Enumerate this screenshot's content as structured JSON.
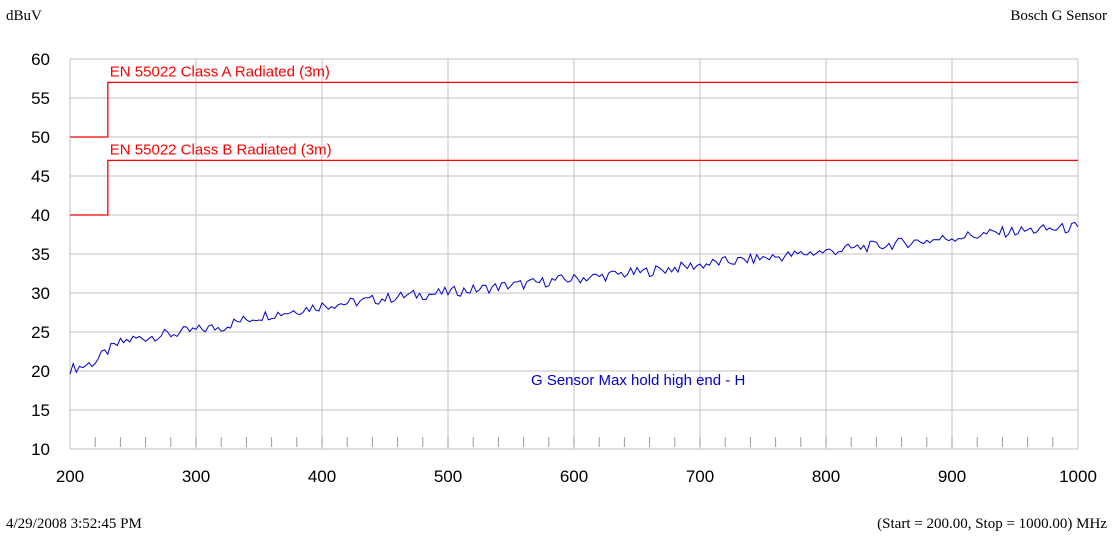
{
  "header": {
    "y_unit_label": "dBuV",
    "device_title": "Bosch G Sensor"
  },
  "footer": {
    "timestamp": "4/29/2008 3:52:45 PM",
    "range_info": "(Start = 200.00, Stop = 1000.00) MHz"
  },
  "colors": {
    "limit": "#ff0000",
    "trace": "#0000cc",
    "grid": "#c0c0c0",
    "axis_text": "#000000"
  },
  "chart_data": {
    "type": "line",
    "title": "Bosch G Sensor",
    "xlabel": "",
    "ylabel": "dBuV",
    "xlim": [
      200,
      1000
    ],
    "ylim": [
      10,
      60
    ],
    "x_ticks": [
      "200",
      "300",
      "400",
      "500",
      "600",
      "700",
      "800",
      "900",
      "1000"
    ],
    "y_ticks": [
      "10",
      "15",
      "20",
      "25",
      "30",
      "35",
      "40",
      "45",
      "50",
      "55",
      "60"
    ],
    "grid": true,
    "limit_lines": [
      {
        "name": "EN 55022 Class A Radiated (3m)",
        "x": [
          200,
          230,
          230,
          1000
        ],
        "y": [
          50,
          50,
          57,
          57
        ]
      },
      {
        "name": "EN 55022 Class B Radiated (3m)",
        "x": [
          200,
          230,
          230,
          1000
        ],
        "y": [
          40,
          40,
          47,
          47
        ]
      }
    ],
    "series": [
      {
        "name": "G Sensor Max hold high end - H",
        "x": [
          200,
          210,
          220,
          230,
          240,
          250,
          260,
          270,
          280,
          290,
          300,
          310,
          320,
          330,
          340,
          350,
          360,
          370,
          380,
          390,
          400,
          410,
          420,
          430,
          440,
          450,
          460,
          470,
          480,
          490,
          500,
          510,
          520,
          530,
          540,
          550,
          560,
          570,
          580,
          590,
          600,
          610,
          620,
          630,
          640,
          650,
          660,
          670,
          680,
          690,
          700,
          710,
          720,
          730,
          740,
          750,
          760,
          770,
          780,
          790,
          800,
          810,
          820,
          830,
          840,
          850,
          860,
          870,
          880,
          890,
          900,
          910,
          920,
          930,
          940,
          950,
          960,
          970,
          980,
          990,
          1000
        ],
        "y": [
          20.3,
          20.6,
          21.2,
          22.6,
          23.6,
          24.1,
          24.3,
          24.6,
          24.7,
          25.0,
          25.2,
          25.5,
          25.6,
          26.2,
          26.6,
          27.0,
          27.3,
          27.5,
          27.8,
          28.1,
          28.4,
          28.6,
          28.7,
          28.9,
          29.1,
          29.3,
          29.5,
          29.7,
          29.8,
          29.9,
          30.1,
          30.3,
          30.4,
          30.6,
          30.8,
          31.0,
          31.1,
          31.3,
          31.5,
          31.7,
          31.8,
          32.0,
          32.1,
          32.3,
          32.5,
          32.6,
          32.8,
          33.0,
          33.2,
          33.4,
          33.6,
          33.8,
          34.0,
          34.1,
          34.3,
          34.5,
          34.6,
          34.8,
          35.0,
          35.2,
          35.3,
          35.5,
          35.7,
          35.9,
          36.0,
          36.2,
          36.4,
          36.6,
          36.7,
          36.9,
          37.1,
          37.3,
          37.4,
          37.6,
          37.8,
          37.9,
          38.0,
          38.1,
          38.2,
          38.3,
          38.5
        ]
      }
    ]
  }
}
